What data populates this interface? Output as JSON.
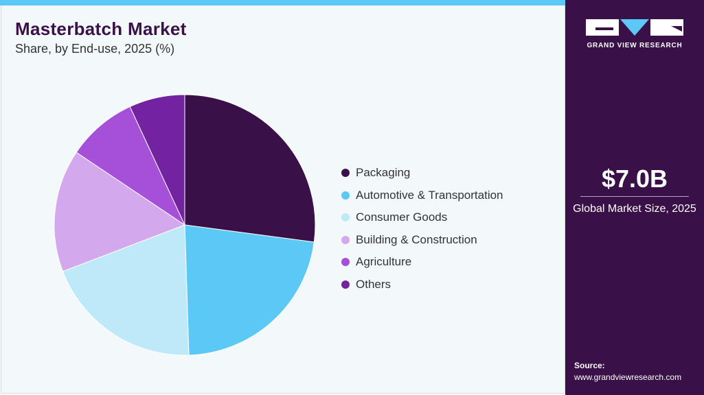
{
  "header": {
    "title": "Masterbatch Market",
    "subtitle": "Share, by End-use, 2025 (%)"
  },
  "chart_data": {
    "type": "pie",
    "title": "Masterbatch Market",
    "subtitle": "Share, by End-use, 2025 (%)",
    "categories": [
      "Packaging",
      "Automotive & Transportation",
      "Consumer Goods",
      "Building & Construction",
      "Agriculture",
      "Others"
    ],
    "values": [
      27.1,
      22.4,
      19.7,
      15.2,
      8.7,
      6.9
    ],
    "colors": [
      "#3a1048",
      "#5bc8f5",
      "#bde9f9",
      "#d4a8ec",
      "#a64fd8",
      "#7322a0"
    ],
    "start_angle": "12 o'clock, clockwise",
    "legend_position": "right"
  },
  "sidebar": {
    "logo_text": "GRAND VIEW RESEARCH",
    "market_size": "$7.0B",
    "market_size_label": "Global Market Size, 2025",
    "source_label": "Source:",
    "source_url": "www.grandviewresearch.com"
  }
}
